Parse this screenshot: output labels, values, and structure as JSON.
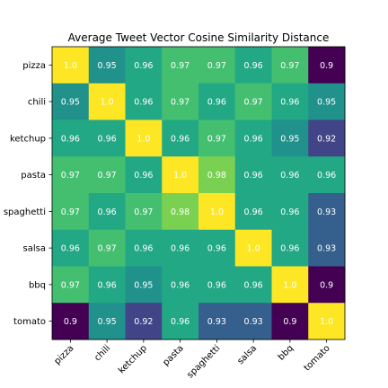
{
  "chart_data": {
    "type": "heatmap",
    "title": "Average Tweet Vector Cosine Similarity Distance",
    "xlabel": "",
    "ylabel": "",
    "x_categories": [
      "pizza",
      "chili",
      "ketchup",
      "pasta",
      "spaghetti",
      "salsa",
      "bbq",
      "tomato"
    ],
    "y_categories": [
      "pizza",
      "chili",
      "ketchup",
      "pasta",
      "spaghetti",
      "salsa",
      "bbq",
      "tomato"
    ],
    "values": [
      [
        1.0,
        0.95,
        0.96,
        0.97,
        0.97,
        0.96,
        0.97,
        0.9
      ],
      [
        0.95,
        1.0,
        0.96,
        0.97,
        0.96,
        0.97,
        0.96,
        0.95
      ],
      [
        0.96,
        0.96,
        1.0,
        0.96,
        0.97,
        0.96,
        0.95,
        0.92
      ],
      [
        0.97,
        0.97,
        0.96,
        1.0,
        0.98,
        0.96,
        0.96,
        0.96
      ],
      [
        0.97,
        0.96,
        0.97,
        0.98,
        1.0,
        0.96,
        0.96,
        0.93
      ],
      [
        0.96,
        0.97,
        0.96,
        0.96,
        0.96,
        1.0,
        0.96,
        0.93
      ],
      [
        0.97,
        0.96,
        0.95,
        0.96,
        0.96,
        0.96,
        1.0,
        0.9
      ],
      [
        0.9,
        0.95,
        0.92,
        0.96,
        0.93,
        0.93,
        0.9,
        1.0
      ]
    ],
    "value_labels": [
      [
        "1.0",
        "0.95",
        "0.96",
        "0.97",
        "0.97",
        "0.96",
        "0.97",
        "0.9"
      ],
      [
        "0.95",
        "1.0",
        "0.96",
        "0.97",
        "0.96",
        "0.97",
        "0.96",
        "0.95"
      ],
      [
        "0.96",
        "0.96",
        "1.0",
        "0.96",
        "0.97",
        "0.96",
        "0.95",
        "0.92"
      ],
      [
        "0.97",
        "0.97",
        "0.96",
        "1.0",
        "0.98",
        "0.96",
        "0.96",
        "0.96"
      ],
      [
        "0.97",
        "0.96",
        "0.97",
        "0.98",
        "1.0",
        "0.96",
        "0.96",
        "0.93"
      ],
      [
        "0.96",
        "0.97",
        "0.96",
        "0.96",
        "0.96",
        "1.0",
        "0.96",
        "0.93"
      ],
      [
        "0.97",
        "0.96",
        "0.95",
        "0.96",
        "0.96",
        "0.96",
        "1.0",
        "0.9"
      ],
      [
        "0.9",
        "0.95",
        "0.92",
        "0.96",
        "0.93",
        "0.93",
        "0.9",
        "1.0"
      ]
    ],
    "colormap": "viridis",
    "color_range": [
      0.9,
      1.0
    ],
    "label_color": "#ffffff",
    "grid": false
  }
}
